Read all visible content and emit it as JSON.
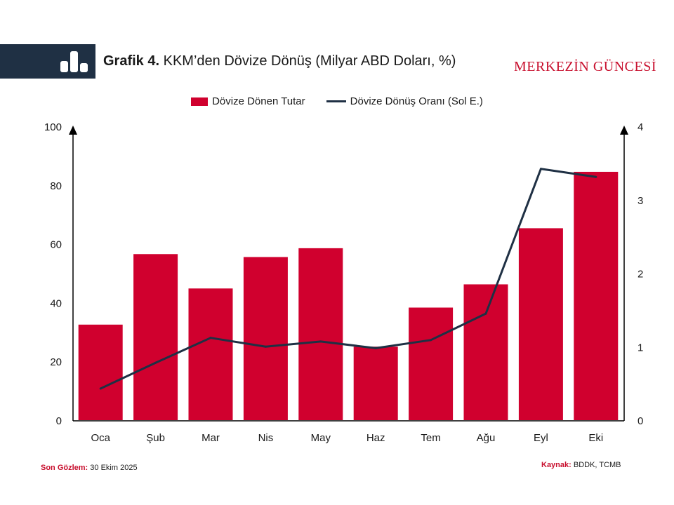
{
  "header": {
    "chart_label": "Grafik 4.",
    "chart_title": "KKM’den Dövize Dönüş (Milyar ABD Doları, %)",
    "brand": "MERKEZİN GÜNCESİ",
    "icon": "bar-chart-icon"
  },
  "legend": {
    "bar_label": "Dövize Dönen Tutar",
    "line_label": "Dövize Dönüş Oranı (Sol E.)"
  },
  "footer": {
    "last_obs_key": "Son Gözlem:",
    "last_obs_value": "30 Ekim 2025",
    "source_key": "Kaynak:",
    "source_value": "BDDK, TCMB"
  },
  "colors": {
    "bar": "#d0002e",
    "line": "#1f3044",
    "header_band": "#1f3044",
    "accent": "#c8102e"
  },
  "chart_data": {
    "type": "bar",
    "categories": [
      "Oca",
      "Şub",
      "Mar",
      "Nis",
      "May",
      "Haz",
      "Tem",
      "Ağu",
      "Eyl",
      "Eki"
    ],
    "series": [
      {
        "name": "Dövize Dönen Tutar",
        "type": "bar",
        "axis": "left",
        "values": [
          32.5,
          56.5,
          44.8,
          55.5,
          58.5,
          25.0,
          38.3,
          46.2,
          65.3,
          84.5
        ]
      },
      {
        "name": "Dövize Dönüş Oranı (Sol E.)",
        "type": "line",
        "axis": "right",
        "values": [
          0.43,
          0.78,
          1.12,
          1.0,
          1.07,
          0.98,
          1.09,
          1.45,
          3.42,
          3.31
        ]
      }
    ],
    "left_axis": {
      "ylim": [
        0,
        100
      ],
      "ticks": [
        "0",
        "20",
        "40",
        "60",
        "80",
        "100"
      ]
    },
    "right_axis": {
      "ylim": [
        0,
        4
      ],
      "ticks": [
        "0",
        "1",
        "2",
        "3",
        "4"
      ]
    },
    "grid": false,
    "legend_position": "top-center"
  }
}
